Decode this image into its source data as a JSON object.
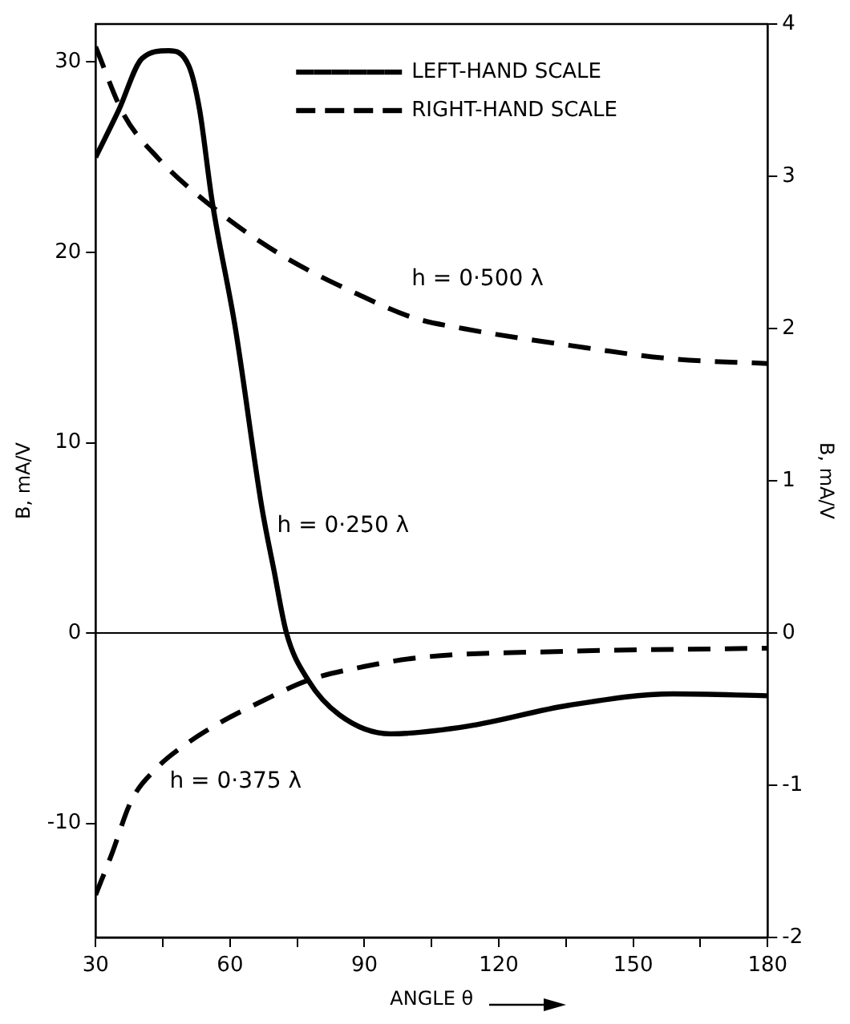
{
  "chart_data": {
    "type": "line",
    "xlabel": "ANGLE θ",
    "ylabel": "B, mA/V",
    "y2label": "B, mA/V",
    "xlim": [
      30,
      180
    ],
    "xticks": [
      30,
      {
        "value": 45,
        "label": null
      },
      60,
      {
        "value": 75,
        "label": null
      },
      90,
      {
        "value": 105,
        "label": null
      },
      120,
      {
        "value": 135,
        "label": null
      },
      150,
      {
        "value": 165,
        "label": null
      },
      180
    ],
    "ylim": [
      -16,
      32
    ],
    "yticks": [
      -10,
      0,
      10,
      20,
      30
    ],
    "y2lim": [
      -2,
      4
    ],
    "y2ticks": [
      -2,
      -1,
      0,
      1,
      2,
      3,
      4
    ],
    "series": [
      {
        "name": "LEFT-HAND SCALE",
        "color": "#000000",
        "line_style": "solid",
        "x": [
          30,
          35.2,
          40.4,
          46.3,
          50.8,
          53.2,
          56,
          61.2,
          67.1,
          69.8,
          72.6,
          77.5,
          84.4,
          95.8,
          113,
          135.6,
          158.9,
          180
        ],
        "values": [
          25,
          27.5,
          30.2,
          30.6,
          29.8,
          27.5,
          22.7,
          16,
          6.6,
          3.3,
          0,
          -2.5,
          -4.3,
          -5.3,
          -4.9,
          -3.8,
          -3.2,
          -3.3
        ]
      },
      {
        "name": "RIGHT-HAND SCALE",
        "color": "#000000",
        "line_style": "dashed",
        "axis": "y2",
        "x": [
          30,
          36.2,
          43.9,
          56,
          71.6,
          88.9,
          101,
          112,
          135.6,
          159,
          180
        ],
        "values": [
          3.85,
          3.41,
          3.12,
          2.8,
          2.48,
          2.22,
          2.07,
          2,
          1.89,
          1.8,
          1.77
        ]
      },
      {
        "color": "#000000",
        "line_style": "dashed",
        "axis": "y2",
        "x": [
          30,
          33.5,
          38,
          43.9,
          49.7,
          57.7,
          67,
          77.5,
          90,
          102.7,
          135.6,
          180
        ],
        "values": [
          -1.72,
          -1.46,
          -1.1,
          -0.88,
          -0.74,
          -0.59,
          -0.45,
          -0.31,
          -0.22,
          -0.16,
          -0.12,
          -0.1
        ]
      }
    ],
    "ref_lines": [
      {
        "axis": "y",
        "value": 0
      }
    ],
    "annotations": [
      "h = 0·500 λ",
      "h = 0·250 λ",
      "h = 0·375 λ"
    ],
    "legend": "top right",
    "marker": "none",
    "grid": false
  }
}
